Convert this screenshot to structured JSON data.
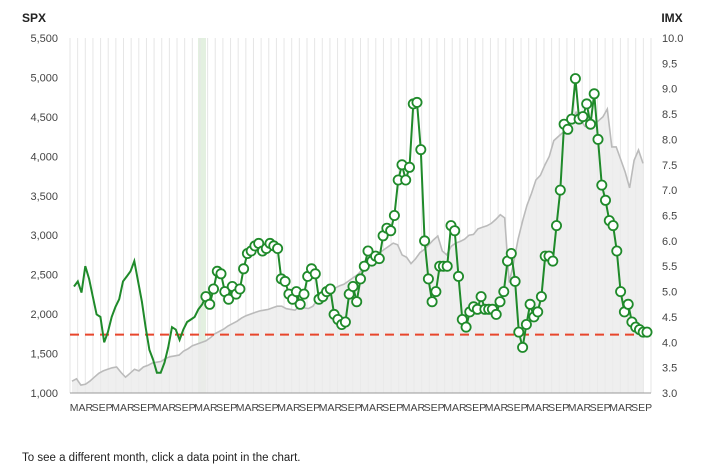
{
  "caption": "To see a different month, click a data point in the chart.",
  "chart_data": {
    "type": "line",
    "left_axis": {
      "label": "SPX",
      "ylim": [
        1000,
        5500
      ],
      "ticks": [
        "1,000",
        "1,500",
        "2,000",
        "2,500",
        "3,000",
        "3,500",
        "4,000",
        "4,500",
        "5,000",
        "5,500"
      ]
    },
    "right_axis": {
      "label": "IMX",
      "ylim": [
        3.0,
        10.0
      ],
      "ticks": [
        "3.0",
        "3.5",
        "4.0",
        "4.5",
        "5.0",
        "5.5",
        "6.0",
        "6.5",
        "7.0",
        "7.5",
        "8.0",
        "8.5",
        "9.0",
        "9.5",
        "10.0"
      ]
    },
    "x_ticks": [
      "MAR",
      "SEP",
      "MAR",
      "SEP",
      "MAR",
      "SEP",
      "MAR",
      "SEP",
      "MAR",
      "SEP",
      "MAR",
      "SEP",
      "MAR",
      "SEP",
      "MAR",
      "SEP",
      "MAR",
      "SEP",
      "MAR",
      "SEP",
      "MAR",
      "SEP",
      "MAR",
      "SEP",
      "MAR",
      "SEP",
      "MAR",
      "SEP"
    ],
    "reference_line": {
      "value": 4.15,
      "axis": "right",
      "color": "#e8462c"
    },
    "colors": {
      "spx": "#bbbbbb",
      "spx_fill": "#ebebeb",
      "imx": "#1f8a2a",
      "marker_fill": "#ffffff",
      "grid": "#e6e6e6",
      "highlight": "#e3f0e0"
    },
    "spx": [
      1150,
      1180,
      1100,
      1110,
      1150,
      1200,
      1250,
      1280,
      1300,
      1320,
      1330,
      1260,
      1200,
      1250,
      1300,
      1280,
      1330,
      1350,
      1380,
      1390,
      1400,
      1440,
      1460,
      1470,
      1480,
      1530,
      1560,
      1600,
      1620,
      1640,
      1660,
      1700,
      1750,
      1780,
      1810,
      1850,
      1880,
      1910,
      1950,
      1980,
      2000,
      2020,
      2040,
      2050,
      2060,
      2080,
      2100,
      2100,
      2070,
      2060,
      2050,
      2100,
      2080,
      2070,
      2100,
      2180,
      2240,
      2270,
      2300,
      2330,
      2360,
      2380,
      2420,
      2460,
      2500,
      2560,
      2620,
      2680,
      2720,
      2780,
      2820,
      2860,
      2900,
      2880,
      2750,
      2720,
      2640,
      2700,
      2780,
      2820,
      2880,
      2940,
      2990,
      2800,
      2750,
      2860,
      2900,
      2920,
      2950,
      3000,
      3010,
      3080,
      3100,
      3120,
      3150,
      3200,
      3260,
      3220,
      2400,
      2650,
      2950,
      3180,
      3380,
      3530,
      3700,
      3760,
      3890,
      4000,
      4200,
      4250,
      4300,
      4330,
      4440,
      4560,
      4460,
      4380,
      4360,
      4400,
      4450,
      4500,
      4600,
      4120,
      4120,
      3960,
      3800,
      3600,
      3950,
      4080,
      3910
    ],
    "imx": [
      {
        "x": 0,
        "y": 5.1,
        "m": false
      },
      {
        "x": 1,
        "y": 5.2,
        "m": false
      },
      {
        "x": 2,
        "y": 4.98,
        "m": false
      },
      {
        "x": 3,
        "y": 5.5,
        "m": false
      },
      {
        "x": 4,
        "y": 5.25,
        "m": false
      },
      {
        "x": 5,
        "y": 4.9,
        "m": false
      },
      {
        "x": 6,
        "y": 4.55,
        "m": false
      },
      {
        "x": 7,
        "y": 4.5,
        "m": false
      },
      {
        "x": 8,
        "y": 4.0,
        "m": false
      },
      {
        "x": 9,
        "y": 4.2,
        "m": false
      },
      {
        "x": 10,
        "y": 4.5,
        "m": false
      },
      {
        "x": 11,
        "y": 4.7,
        "m": false
      },
      {
        "x": 12,
        "y": 4.85,
        "m": false
      },
      {
        "x": 13,
        "y": 5.2,
        "m": false
      },
      {
        "x": 14,
        "y": 5.3,
        "m": false
      },
      {
        "x": 15,
        "y": 5.4,
        "m": false
      },
      {
        "x": 16,
        "y": 5.6,
        "m": false
      },
      {
        "x": 17,
        "y": 5.2,
        "m": false
      },
      {
        "x": 18,
        "y": 4.8,
        "m": false
      },
      {
        "x": 19,
        "y": 4.3,
        "m": false
      },
      {
        "x": 20,
        "y": 3.85,
        "m": false
      },
      {
        "x": 21,
        "y": 3.65,
        "m": false
      },
      {
        "x": 22,
        "y": 3.4,
        "m": false
      },
      {
        "x": 23,
        "y": 3.4,
        "m": false
      },
      {
        "x": 24,
        "y": 3.6,
        "m": false
      },
      {
        "x": 25,
        "y": 3.9,
        "m": false
      },
      {
        "x": 26,
        "y": 4.3,
        "m": false
      },
      {
        "x": 27,
        "y": 4.25,
        "m": false
      },
      {
        "x": 28,
        "y": 4.05,
        "m": false
      },
      {
        "x": 29,
        "y": 4.25,
        "m": false
      },
      {
        "x": 30,
        "y": 4.4,
        "m": false
      },
      {
        "x": 31,
        "y": 4.45,
        "m": false
      },
      {
        "x": 32,
        "y": 4.5,
        "m": false
      },
      {
        "x": 33,
        "y": 4.65,
        "m": false
      },
      {
        "x": 34,
        "y": 4.75,
        "m": false
      },
      {
        "x": 35,
        "y": 4.9,
        "m": true
      },
      {
        "x": 36,
        "y": 4.75,
        "m": true
      },
      {
        "x": 37,
        "y": 5.05,
        "m": true
      },
      {
        "x": 38,
        "y": 5.4,
        "m": true
      },
      {
        "x": 39,
        "y": 5.35,
        "m": true
      },
      {
        "x": 40,
        "y": 5.0,
        "m": true
      },
      {
        "x": 41,
        "y": 4.85,
        "m": true
      },
      {
        "x": 42,
        "y": 5.1,
        "m": true
      },
      {
        "x": 43,
        "y": 4.95,
        "m": true
      },
      {
        "x": 44,
        "y": 5.05,
        "m": true
      },
      {
        "x": 45,
        "y": 5.45,
        "m": true
      },
      {
        "x": 46,
        "y": 5.75,
        "m": true
      },
      {
        "x": 47,
        "y": 5.8,
        "m": true
      },
      {
        "x": 48,
        "y": 5.9,
        "m": true
      },
      {
        "x": 49,
        "y": 5.95,
        "m": true
      },
      {
        "x": 50,
        "y": 5.8,
        "m": true
      },
      {
        "x": 51,
        "y": 5.85,
        "m": true
      },
      {
        "x": 52,
        "y": 5.95,
        "m": true
      },
      {
        "x": 53,
        "y": 5.9,
        "m": true
      },
      {
        "x": 54,
        "y": 5.85,
        "m": true
      },
      {
        "x": 55,
        "y": 5.25,
        "m": true
      },
      {
        "x": 56,
        "y": 5.2,
        "m": true
      },
      {
        "x": 57,
        "y": 4.95,
        "m": true
      },
      {
        "x": 58,
        "y": 4.85,
        "m": true
      },
      {
        "x": 59,
        "y": 5.0,
        "m": true
      },
      {
        "x": 60,
        "y": 4.75,
        "m": true
      },
      {
        "x": 61,
        "y": 4.95,
        "m": true
      },
      {
        "x": 62,
        "y": 5.3,
        "m": true
      },
      {
        "x": 63,
        "y": 5.45,
        "m": true
      },
      {
        "x": 64,
        "y": 5.35,
        "m": true
      },
      {
        "x": 65,
        "y": 4.85,
        "m": true
      },
      {
        "x": 66,
        "y": 4.9,
        "m": true
      },
      {
        "x": 67,
        "y": 5.0,
        "m": true
      },
      {
        "x": 68,
        "y": 5.05,
        "m": true
      },
      {
        "x": 69,
        "y": 4.55,
        "m": true
      },
      {
        "x": 70,
        "y": 4.45,
        "m": true
      },
      {
        "x": 71,
        "y": 4.35,
        "m": true
      },
      {
        "x": 72,
        "y": 4.4,
        "m": true
      },
      {
        "x": 73,
        "y": 4.95,
        "m": true
      },
      {
        "x": 74,
        "y": 5.1,
        "m": true
      },
      {
        "x": 75,
        "y": 4.8,
        "m": true
      },
      {
        "x": 76,
        "y": 5.25,
        "m": true
      },
      {
        "x": 77,
        "y": 5.5,
        "m": true
      },
      {
        "x": 78,
        "y": 5.8,
        "m": true
      },
      {
        "x": 79,
        "y": 5.6,
        "m": true
      },
      {
        "x": 80,
        "y": 5.7,
        "m": true
      },
      {
        "x": 81,
        "y": 5.65,
        "m": true
      },
      {
        "x": 82,
        "y": 6.1,
        "m": true
      },
      {
        "x": 83,
        "y": 6.25,
        "m": true
      },
      {
        "x": 84,
        "y": 6.2,
        "m": true
      },
      {
        "x": 85,
        "y": 6.5,
        "m": true
      },
      {
        "x": 86,
        "y": 7.2,
        "m": true
      },
      {
        "x": 87,
        "y": 7.5,
        "m": true
      },
      {
        "x": 88,
        "y": 7.2,
        "m": true
      },
      {
        "x": 89,
        "y": 7.45,
        "m": true
      },
      {
        "x": 90,
        "y": 8.7,
        "m": true
      },
      {
        "x": 91,
        "y": 8.73,
        "m": true
      },
      {
        "x": 92,
        "y": 7.8,
        "m": true
      },
      {
        "x": 93,
        "y": 6.0,
        "m": true
      },
      {
        "x": 94,
        "y": 5.25,
        "m": true
      },
      {
        "x": 95,
        "y": 4.8,
        "m": true
      },
      {
        "x": 96,
        "y": 5.0,
        "m": true
      },
      {
        "x": 97,
        "y": 5.5,
        "m": true
      },
      {
        "x": 98,
        "y": 5.5,
        "m": true
      },
      {
        "x": 99,
        "y": 5.5,
        "m": true
      },
      {
        "x": 100,
        "y": 6.3,
        "m": true
      },
      {
        "x": 101,
        "y": 6.2,
        "m": true
      },
      {
        "x": 102,
        "y": 5.3,
        "m": true
      },
      {
        "x": 103,
        "y": 4.45,
        "m": true
      },
      {
        "x": 104,
        "y": 4.3,
        "m": true
      },
      {
        "x": 105,
        "y": 4.6,
        "m": true
      },
      {
        "x": 106,
        "y": 4.7,
        "m": true
      },
      {
        "x": 107,
        "y": 4.65,
        "m": true
      },
      {
        "x": 108,
        "y": 4.9,
        "m": true
      },
      {
        "x": 109,
        "y": 4.65,
        "m": true
      },
      {
        "x": 110,
        "y": 4.65,
        "m": true
      },
      {
        "x": 111,
        "y": 4.65,
        "m": true
      },
      {
        "x": 112,
        "y": 4.55,
        "m": true
      },
      {
        "x": 113,
        "y": 4.8,
        "m": true
      },
      {
        "x": 114,
        "y": 5.0,
        "m": true
      },
      {
        "x": 115,
        "y": 5.6,
        "m": true
      },
      {
        "x": 116,
        "y": 5.75,
        "m": true
      },
      {
        "x": 117,
        "y": 5.2,
        "m": true
      },
      {
        "x": 118,
        "y": 4.2,
        "m": true
      },
      {
        "x": 119,
        "y": 3.9,
        "m": true
      },
      {
        "x": 120,
        "y": 4.35,
        "m": true
      },
      {
        "x": 121,
        "y": 4.75,
        "m": true
      },
      {
        "x": 122,
        "y": 4.5,
        "m": true
      },
      {
        "x": 123,
        "y": 4.6,
        "m": true
      },
      {
        "x": 124,
        "y": 4.9,
        "m": true
      },
      {
        "x": 125,
        "y": 5.7,
        "m": true
      },
      {
        "x": 126,
        "y": 5.7,
        "m": true
      },
      {
        "x": 127,
        "y": 5.6,
        "m": true
      },
      {
        "x": 128,
        "y": 6.3,
        "m": true
      },
      {
        "x": 129,
        "y": 7.0,
        "m": true
      },
      {
        "x": 130,
        "y": 8.3,
        "m": true
      },
      {
        "x": 131,
        "y": 8.2,
        "m": true
      },
      {
        "x": 132,
        "y": 8.4,
        "m": true
      },
      {
        "x": 133,
        "y": 9.2,
        "m": true
      },
      {
        "x": 134,
        "y": 8.4,
        "m": true
      },
      {
        "x": 135,
        "y": 8.45,
        "m": true
      },
      {
        "x": 136,
        "y": 8.7,
        "m": true
      },
      {
        "x": 137,
        "y": 8.3,
        "m": true
      },
      {
        "x": 138,
        "y": 8.9,
        "m": true
      },
      {
        "x": 139,
        "y": 8.0,
        "m": true
      },
      {
        "x": 140,
        "y": 7.1,
        "m": true
      },
      {
        "x": 141,
        "y": 6.8,
        "m": true
      },
      {
        "x": 142,
        "y": 6.4,
        "m": true
      },
      {
        "x": 143,
        "y": 6.3,
        "m": true
      },
      {
        "x": 144,
        "y": 5.8,
        "m": true
      },
      {
        "x": 145,
        "y": 5.0,
        "m": true
      },
      {
        "x": 146,
        "y": 4.6,
        "m": true
      },
      {
        "x": 147,
        "y": 4.75,
        "m": true
      },
      {
        "x": 148,
        "y": 4.4,
        "m": true
      },
      {
        "x": 149,
        "y": 4.3,
        "m": true
      },
      {
        "x": 150,
        "y": 4.25,
        "m": true
      },
      {
        "x": 151,
        "y": 4.2,
        "m": true
      },
      {
        "x": 152,
        "y": 4.2,
        "m": true
      }
    ]
  }
}
